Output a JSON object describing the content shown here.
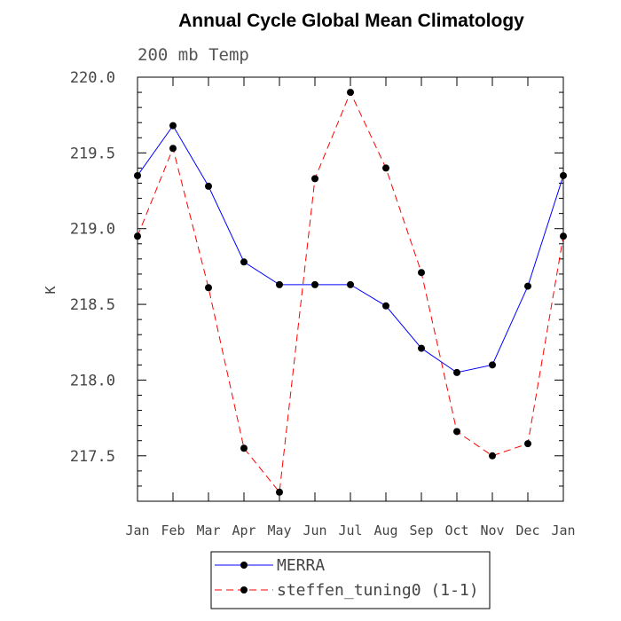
{
  "chart_data": {
    "type": "line",
    "title": "Annual Cycle Global Mean Climatology",
    "subtitle": "200 mb Temp",
    "xlabel": "",
    "ylabel": "K",
    "categories": [
      "Jan",
      "Feb",
      "Mar",
      "Apr",
      "May",
      "Jun",
      "Jul",
      "Aug",
      "Sep",
      "Oct",
      "Nov",
      "Dec",
      "Jan"
    ],
    "ylim": [
      217.2,
      220.0
    ],
    "yticks": [
      "217.5",
      "218.0",
      "218.5",
      "219.0",
      "219.5",
      "220.0"
    ],
    "ytick_values": [
      217.5,
      218.0,
      218.5,
      219.0,
      219.5,
      220.0
    ],
    "grid": false,
    "legend_position": "bottom-center",
    "series": [
      {
        "name": "MERRA",
        "color": "#0000ff",
        "dashed": false,
        "values": [
          219.35,
          219.68,
          219.28,
          218.78,
          218.63,
          218.63,
          218.63,
          218.49,
          218.21,
          218.05,
          218.1,
          218.62,
          219.35
        ]
      },
      {
        "name": "steffen_tuning0 (1-1)",
        "color": "#ff0000",
        "dashed": true,
        "values": [
          218.95,
          219.53,
          218.61,
          217.55,
          217.26,
          219.33,
          219.9,
          219.4,
          218.71,
          217.66,
          217.5,
          217.58,
          218.95
        ]
      }
    ]
  }
}
